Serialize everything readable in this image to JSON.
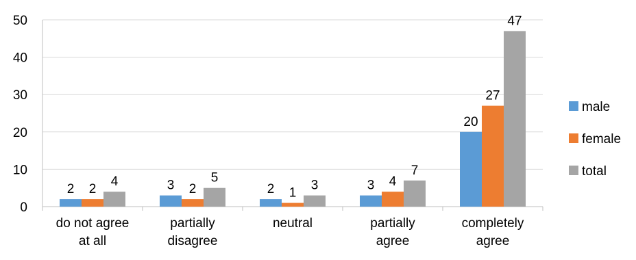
{
  "chart_data": {
    "type": "bar",
    "title": "",
    "xlabel": "",
    "ylabel": "",
    "ylim": [
      0,
      50
    ],
    "yticks": [
      0,
      10,
      20,
      30,
      40,
      50
    ],
    "grid": true,
    "legend_position": "right",
    "categories": [
      [
        "do not agree",
        "at all"
      ],
      [
        "partially",
        "disagree"
      ],
      [
        "neutral"
      ],
      [
        "partially",
        "agree"
      ],
      [
        "completely",
        "agree"
      ]
    ],
    "series": [
      {
        "name": "male",
        "color": "#5B9BD5",
        "values": [
          2,
          3,
          2,
          3,
          20
        ]
      },
      {
        "name": "female",
        "color": "#ED7D31",
        "values": [
          2,
          2,
          1,
          4,
          27
        ]
      },
      {
        "name": "total",
        "color": "#A5A5A5",
        "values": [
          4,
          5,
          3,
          7,
          47
        ]
      }
    ]
  }
}
